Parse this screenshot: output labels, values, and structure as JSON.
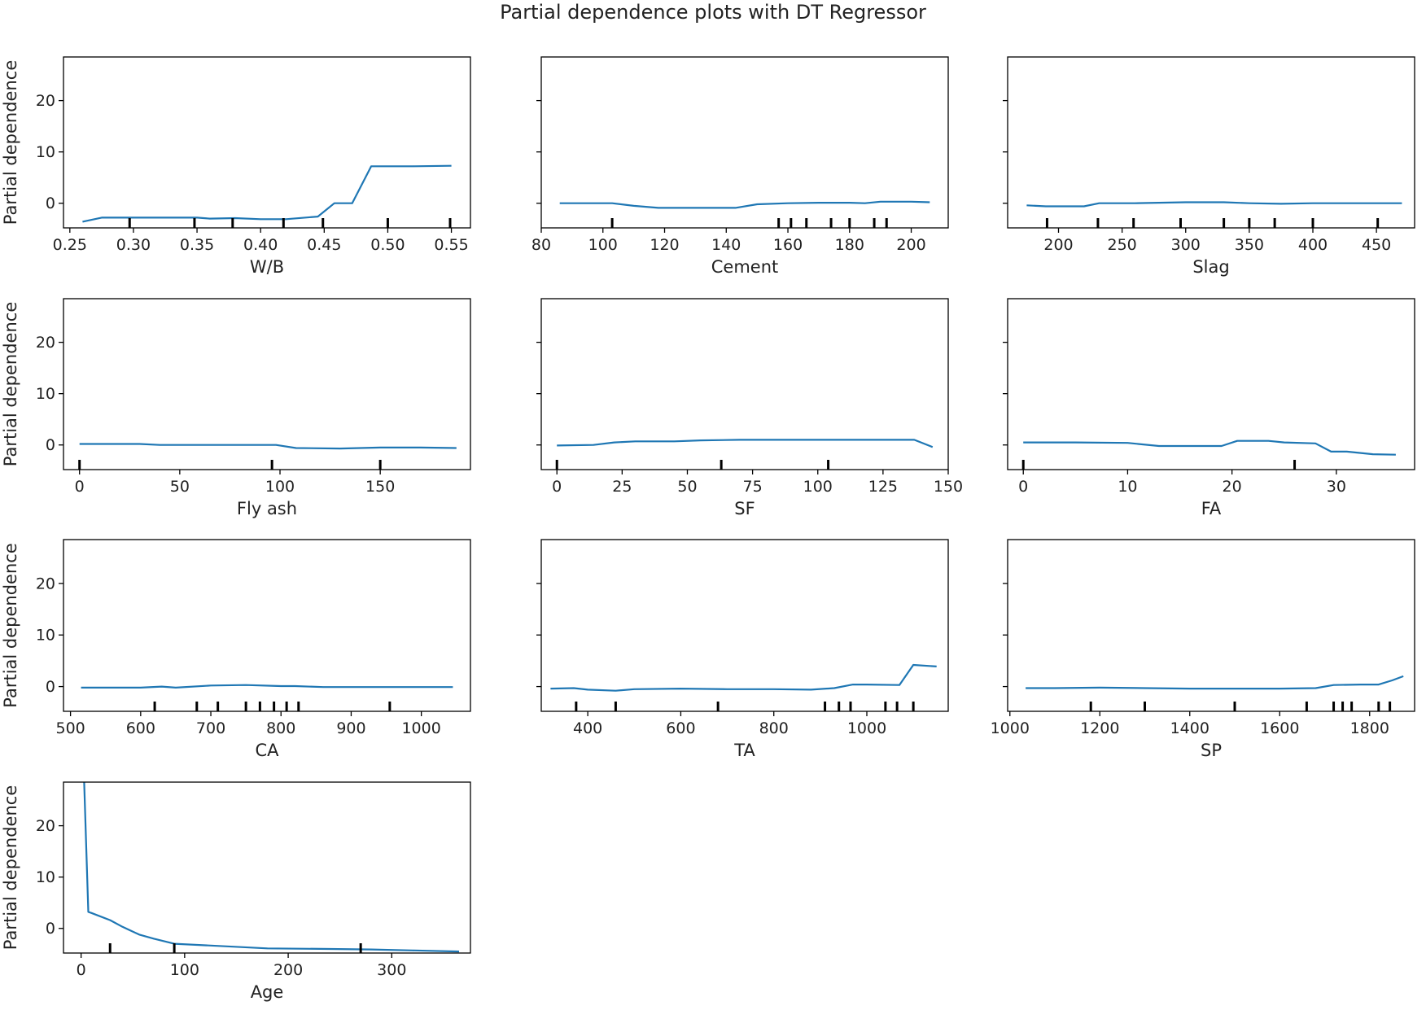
{
  "figure": {
    "title": "Partial dependence plots with DT Regressor",
    "line_color": "#1f77b4",
    "frame_color": "#000000",
    "rug_color": "#000000"
  },
  "shared_y": {
    "label": "Partial dependence",
    "ylim": [
      -4.8,
      28.5
    ],
    "ticks": [
      0,
      10,
      20
    ],
    "tick_labels": [
      "0",
      "10",
      "20"
    ]
  },
  "chart_data": [
    {
      "type": "line",
      "xlabel": "W/B",
      "xlim": [
        0.245,
        0.565
      ],
      "xticks": [
        0.25,
        0.3,
        0.35,
        0.4,
        0.45,
        0.5,
        0.55
      ],
      "xtick_labels": [
        "0.25",
        "0.30",
        "0.35",
        "0.40",
        "0.45",
        "0.50",
        "0.55"
      ],
      "x": [
        0.26,
        0.275,
        0.3,
        0.33,
        0.35,
        0.36,
        0.38,
        0.4,
        0.42,
        0.445,
        0.458,
        0.472,
        0.487,
        0.52,
        0.55
      ],
      "y": [
        -3.6,
        -2.8,
        -2.8,
        -2.8,
        -2.8,
        -3.0,
        -2.9,
        -3.1,
        -3.1,
        -2.6,
        0.0,
        0.0,
        7.2,
        7.2,
        7.3
      ],
      "deciles": [
        0.297,
        0.348,
        0.378,
        0.418,
        0.449,
        0.5,
        0.549
      ]
    },
    {
      "type": "line",
      "xlabel": "Cement",
      "xlim": [
        80,
        212
      ],
      "xticks": [
        80,
        100,
        120,
        140,
        160,
        180,
        200
      ],
      "xtick_labels": [
        "80",
        "100",
        "120",
        "140",
        "160",
        "180",
        "200"
      ],
      "x": [
        86,
        103,
        110,
        118,
        130,
        143,
        150,
        160,
        170,
        180,
        185,
        190,
        200,
        206
      ],
      "y": [
        0.0,
        0.0,
        -0.5,
        -0.9,
        -0.9,
        -0.9,
        -0.2,
        0.0,
        0.1,
        0.1,
        0.0,
        0.3,
        0.3,
        0.2
      ],
      "deciles": [
        103,
        157,
        161,
        166,
        174,
        180,
        188,
        192
      ]
    },
    {
      "type": "line",
      "xlabel": "Slag",
      "xlim": [
        160,
        480
      ],
      "xticks": [
        200,
        250,
        300,
        350,
        400,
        450
      ],
      "xtick_labels": [
        "200",
        "250",
        "300",
        "350",
        "400",
        "450"
      ],
      "x": [
        175,
        190,
        220,
        232,
        260,
        300,
        330,
        350,
        375,
        400,
        430,
        470
      ],
      "y": [
        -0.4,
        -0.6,
        -0.6,
        0.0,
        0.0,
        0.2,
        0.2,
        0.0,
        -0.1,
        0.0,
        0.0,
        0.0
      ],
      "deciles": [
        191,
        231,
        259,
        296,
        330,
        350,
        370,
        400,
        451
      ]
    },
    {
      "type": "line",
      "xlabel": "Fly ash",
      "xlim": [
        -8,
        195
      ],
      "xticks": [
        0,
        50,
        100,
        150
      ],
      "xtick_labels": [
        "0",
        "50",
        "100",
        "150"
      ],
      "x": [
        0,
        20,
        30,
        40,
        60,
        80,
        98,
        108,
        130,
        150,
        170,
        188
      ],
      "y": [
        0.2,
        0.2,
        0.2,
        0.0,
        0.0,
        0.0,
        0.0,
        -0.6,
        -0.7,
        -0.5,
        -0.5,
        -0.6
      ],
      "deciles": [
        0,
        96,
        150
      ]
    },
    {
      "type": "line",
      "xlabel": "SF",
      "xlim": [
        -6,
        150
      ],
      "xticks": [
        0,
        25,
        50,
        75,
        100,
        125,
        150
      ],
      "xtick_labels": [
        "0",
        "25",
        "50",
        "75",
        "100",
        "125",
        "150"
      ],
      "x": [
        0,
        14,
        22,
        30,
        45,
        55,
        70,
        90,
        110,
        125,
        137,
        144
      ],
      "y": [
        -0.1,
        0.0,
        0.5,
        0.7,
        0.7,
        0.9,
        1.0,
        1.0,
        1.0,
        1.0,
        1.0,
        -0.4
      ],
      "deciles": [
        0,
        63,
        104
      ]
    },
    {
      "type": "line",
      "xlabel": "FA",
      "xlim": [
        -1.5,
        37.5
      ],
      "xticks": [
        0,
        10,
        20,
        30
      ],
      "xtick_labels": [
        "0",
        "10",
        "20",
        "30"
      ],
      "x": [
        0,
        5,
        10,
        13,
        16,
        19,
        20.5,
        23.5,
        25,
        28,
        29.5,
        31,
        33.5,
        35.7
      ],
      "y": [
        0.5,
        0.5,
        0.4,
        -0.2,
        -0.2,
        -0.2,
        0.8,
        0.8,
        0.5,
        0.3,
        -1.3,
        -1.3,
        -1.8,
        -1.9
      ],
      "deciles": [
        0,
        26
      ]
    },
    {
      "type": "line",
      "xlabel": "CA",
      "xlim": [
        490,
        1070
      ],
      "xticks": [
        500,
        600,
        700,
        800,
        900,
        1000
      ],
      "xtick_labels": [
        "500",
        "600",
        "700",
        "800",
        "900",
        "1000"
      ],
      "x": [
        515,
        600,
        630,
        650,
        700,
        750,
        800,
        820,
        860,
        900,
        1000,
        1045
      ],
      "y": [
        -0.2,
        -0.2,
        0.0,
        -0.2,
        0.2,
        0.3,
        0.1,
        0.1,
        -0.1,
        -0.1,
        -0.1,
        -0.1
      ],
      "deciles": [
        620,
        680,
        710,
        750,
        770,
        790,
        808,
        825,
        955
      ]
    },
    {
      "type": "line",
      "xlabel": "TA",
      "xlim": [
        300,
        1175
      ],
      "xticks": [
        400,
        600,
        800,
        1000
      ],
      "xtick_labels": [
        "400",
        "600",
        "800",
        "1000"
      ],
      "x": [
        320,
        370,
        400,
        460,
        500,
        600,
        700,
        800,
        880,
        930,
        970,
        1000,
        1070,
        1100,
        1150
      ],
      "y": [
        -0.4,
        -0.3,
        -0.6,
        -0.8,
        -0.5,
        -0.4,
        -0.5,
        -0.5,
        -0.6,
        -0.3,
        0.4,
        0.4,
        0.3,
        4.2,
        3.9
      ],
      "deciles": [
        375,
        460,
        680,
        910,
        940,
        965,
        1040,
        1065,
        1100
      ]
    },
    {
      "type": "line",
      "xlabel": "SP",
      "xlim": [
        995,
        1900
      ],
      "xticks": [
        1000,
        1200,
        1400,
        1600,
        1800
      ],
      "xtick_labels": [
        "1000",
        "1200",
        "1400",
        "1600",
        "1800"
      ],
      "x": [
        1035,
        1100,
        1200,
        1300,
        1400,
        1500,
        1600,
        1680,
        1720,
        1780,
        1820,
        1850,
        1875
      ],
      "y": [
        -0.3,
        -0.3,
        -0.2,
        -0.3,
        -0.4,
        -0.4,
        -0.4,
        -0.3,
        0.3,
        0.4,
        0.4,
        1.2,
        2.0
      ],
      "deciles": [
        1180,
        1300,
        1500,
        1660,
        1720,
        1740,
        1760,
        1820,
        1845
      ]
    },
    {
      "type": "line",
      "xlabel": "Age",
      "xlim": [
        -17,
        376
      ],
      "xticks": [
        0,
        100,
        200,
        300
      ],
      "xtick_labels": [
        "0",
        "100",
        "200",
        "300"
      ],
      "x": [
        3,
        7,
        10,
        28,
        40,
        56,
        70,
        90,
        120,
        180,
        240,
        280,
        320,
        365
      ],
      "y": [
        28.5,
        3.2,
        3.0,
        1.6,
        0.3,
        -1.2,
        -2.0,
        -3.0,
        -3.3,
        -3.9,
        -4.0,
        -4.1,
        -4.3,
        -4.5
      ],
      "deciles": [
        28,
        90,
        270
      ]
    }
  ]
}
